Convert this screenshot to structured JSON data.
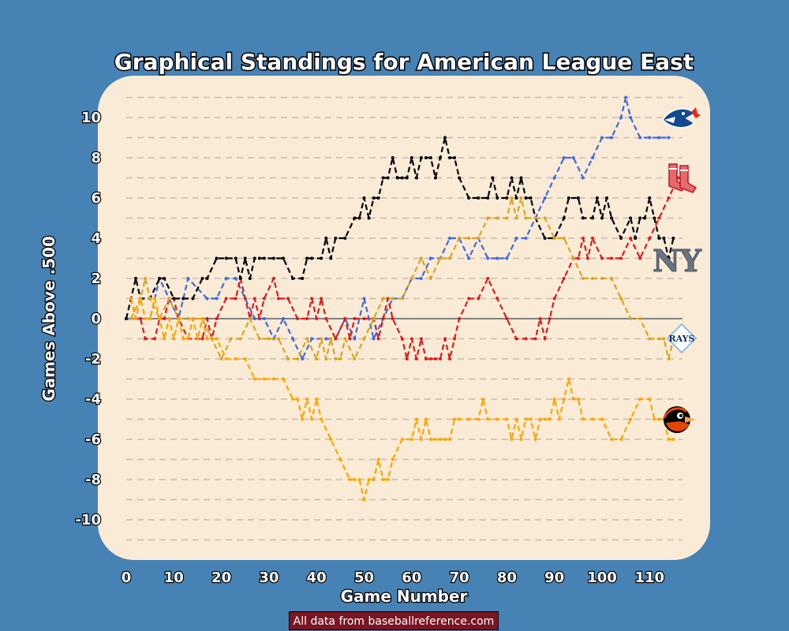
{
  "chart_data": {
    "type": "line",
    "title": "Graphical Standings for American League East",
    "xlabel": "Game Number",
    "ylabel": "Games Above .500",
    "xlim": [
      0,
      117
    ],
    "ylim": [
      -11,
      11
    ],
    "xticks": [
      0,
      10,
      20,
      30,
      40,
      50,
      60,
      70,
      80,
      90,
      100,
      110
    ],
    "yticks": [
      -10,
      -8,
      -6,
      -4,
      -2,
      0,
      2,
      4,
      6,
      8,
      10
    ],
    "grid": "horizontal dashed at every integer",
    "series": [
      {
        "team": "Blue Jays",
        "color": "#4169e1",
        "logo": "blue-jays-logo",
        "x": [
          0,
          5,
          7,
          9,
          11,
          13,
          17,
          19,
          21,
          23,
          27,
          29,
          31,
          33,
          35,
          37,
          39,
          42,
          44,
          46,
          48,
          50,
          52,
          54,
          56,
          58,
          60,
          62,
          64,
          66,
          68,
          70,
          72,
          74,
          76,
          78,
          80,
          82,
          84,
          86,
          88,
          90,
          92,
          94,
          96,
          98,
          100,
          102,
          104,
          105,
          106,
          108,
          110,
          112,
          114
        ],
        "y": [
          0,
          0,
          2,
          1,
          0,
          2,
          1,
          1,
          2,
          2,
          0,
          0,
          -1,
          0,
          -1,
          -2,
          -1,
          -1,
          -1,
          0,
          -1,
          1,
          -1,
          0,
          1,
          1,
          2,
          2,
          3,
          3,
          4,
          4,
          3,
          4,
          3,
          3,
          3,
          4,
          4,
          5,
          6,
          7,
          8,
          8,
          7,
          8,
          9,
          9,
          10,
          11,
          10,
          9,
          9,
          9,
          9
        ]
      },
      {
        "team": "Red Sox",
        "color": "#e31a1c",
        "logo": "red-sox-logo",
        "x": [
          1,
          2,
          3,
          4,
          6,
          7,
          8,
          9,
          10,
          11,
          13,
          15,
          16,
          17,
          18,
          19,
          21,
          23,
          24,
          25,
          26,
          27,
          28,
          29,
          31,
          32,
          34,
          36,
          38,
          39,
          40,
          41,
          42,
          44,
          46,
          47,
          48,
          50,
          52,
          53,
          54,
          55,
          56,
          58,
          59,
          60,
          61,
          62,
          63,
          64,
          65,
          66,
          67,
          68,
          69,
          70,
          72,
          74,
          76,
          78,
          80,
          82,
          84,
          86,
          87,
          88,
          89,
          90,
          92,
          94,
          95,
          96,
          97,
          98,
          100,
          102,
          104,
          106,
          108,
          110,
          112,
          114,
          116
        ],
        "y": [
          1,
          0,
          0,
          -1,
          -1,
          0,
          0,
          1,
          1,
          0,
          -1,
          -1,
          -1,
          0,
          -1,
          0,
          1,
          1,
          2,
          1,
          0,
          1,
          0,
          1,
          2,
          1,
          1,
          0,
          0,
          1,
          0,
          1,
          0,
          -1,
          0,
          -1,
          0,
          0,
          0,
          -1,
          0,
          1,
          0,
          -1,
          -2,
          -1,
          -2,
          -1,
          -2,
          -2,
          -2,
          -2,
          -1,
          -2,
          -1,
          0,
          1,
          1,
          2,
          1,
          0,
          -1,
          -1,
          -1,
          0,
          -1,
          0,
          1,
          2,
          3,
          3,
          4,
          3,
          4,
          3,
          3,
          3,
          4,
          3,
          4,
          5,
          6,
          7
        ]
      },
      {
        "team": "Yankees",
        "color": "#000000",
        "logo": "yankees-logo",
        "x": [
          0,
          2,
          3,
          5,
          7,
          8,
          10,
          12,
          14,
          16,
          17,
          19,
          21,
          23,
          24,
          25,
          26,
          27,
          28,
          29,
          31,
          33,
          35,
          37,
          38,
          39,
          41,
          42,
          43,
          44,
          46,
          48,
          49,
          50,
          51,
          52,
          53,
          54,
          55,
          56,
          57,
          58,
          59,
          60,
          61,
          62,
          63,
          64,
          65,
          66,
          67,
          68,
          69,
          70,
          72,
          74,
          76,
          77,
          78,
          80,
          81,
          82,
          83,
          84,
          85,
          86,
          88,
          90,
          92,
          93,
          95,
          96,
          98,
          99,
          100,
          101,
          102,
          104,
          106,
          107,
          108,
          109,
          110,
          111,
          112,
          113,
          114,
          115
        ],
        "y": [
          0,
          2,
          1,
          1,
          2,
          2,
          1,
          1,
          1,
          2,
          2,
          3,
          3,
          3,
          2,
          3,
          2,
          3,
          3,
          3,
          3,
          3,
          2,
          2,
          3,
          3,
          3,
          4,
          3,
          4,
          4,
          5,
          5,
          6,
          5,
          6,
          6,
          7,
          7,
          8,
          7,
          7,
          7,
          8,
          7,
          8,
          8,
          8,
          7,
          8,
          9,
          8,
          8,
          7,
          6,
          6,
          6,
          7,
          6,
          6,
          7,
          6,
          7,
          6,
          6,
          5,
          4,
          4,
          5,
          6,
          6,
          5,
          5,
          6,
          5,
          6,
          5,
          4,
          5,
          4,
          5,
          5,
          6,
          5,
          4,
          4,
          3,
          4
        ]
      },
      {
        "team": "Rays",
        "color": "#daa520",
        "logo": "rays-logo",
        "x": [
          1,
          3,
          4,
          5,
          7,
          9,
          11,
          13,
          16,
          18,
          20,
          22,
          24,
          26,
          28,
          30,
          32,
          34,
          36,
          38,
          40,
          41,
          42,
          43,
          44,
          45,
          46,
          48,
          50,
          52,
          54,
          56,
          58,
          60,
          62,
          64,
          66,
          68,
          70,
          72,
          74,
          76,
          78,
          80,
          81,
          82,
          83,
          84,
          86,
          88,
          90,
          92,
          94,
          96,
          98,
          100,
          102,
          104,
          106,
          108,
          110,
          112,
          113,
          114,
          115
        ],
        "y": [
          0,
          1,
          2,
          1,
          0,
          1,
          0,
          0,
          0,
          -1,
          -2,
          -1,
          -1,
          0,
          -1,
          -1,
          -1,
          -2,
          -2,
          -1,
          -2,
          -1,
          -2,
          -1,
          -2,
          -2,
          -1,
          -2,
          -1,
          0,
          1,
          1,
          1,
          2,
          3,
          2,
          3,
          3,
          4,
          4,
          4,
          5,
          5,
          5,
          6,
          5,
          6,
          5,
          5,
          5,
          4,
          4,
          3,
          2,
          2,
          2,
          2,
          1,
          0,
          0,
          -1,
          -1,
          -1,
          -2,
          -1
        ]
      },
      {
        "team": "Orioles",
        "color": "#ffa500",
        "logo": "orioles-logo",
        "x": [
          1,
          2,
          3,
          4,
          5,
          6,
          7,
          8,
          9,
          10,
          11,
          12,
          13,
          14,
          15,
          16,
          17,
          19,
          21,
          23,
          25,
          27,
          29,
          31,
          33,
          35,
          36,
          37,
          38,
          39,
          40,
          41,
          43,
          45,
          47,
          48,
          49,
          50,
          51,
          52,
          53,
          54,
          55,
          56,
          58,
          60,
          61,
          62,
          63,
          64,
          65,
          66,
          67,
          68,
          69,
          70,
          72,
          74,
          75,
          76,
          78,
          80,
          81,
          82,
          83,
          84,
          85,
          86,
          87,
          88,
          89,
          90,
          91,
          92,
          93,
          94,
          95,
          96,
          98,
          100,
          102,
          104,
          106,
          108,
          110,
          111,
          112,
          113,
          114,
          115
        ],
        "y": [
          1,
          0,
          1,
          0,
          0,
          1,
          0,
          -1,
          0,
          -1,
          0,
          -1,
          -1,
          0,
          -1,
          0,
          -1,
          -1,
          -2,
          -2,
          -2,
          -3,
          -3,
          -3,
          -3,
          -4,
          -4,
          -5,
          -4,
          -5,
          -4,
          -5,
          -6,
          -7,
          -8,
          -8,
          -8,
          -9,
          -8,
          -8,
          -7,
          -8,
          -8,
          -7,
          -6,
          -6,
          -5,
          -6,
          -5,
          -6,
          -6,
          -6,
          -6,
          -6,
          -5,
          -5,
          -5,
          -5,
          -4,
          -5,
          -5,
          -5,
          -6,
          -5,
          -6,
          -5,
          -5,
          -6,
          -5,
          -5,
          -5,
          -4,
          -5,
          -4,
          -3,
          -4,
          -4,
          -5,
          -5,
          -5,
          -6,
          -6,
          -5,
          -4,
          -4,
          -5,
          -5,
          -5,
          -6,
          -6
        ]
      }
    ]
  },
  "footer": {
    "credit": "All data from baseballreference.com"
  },
  "logos": {
    "rays_text": "RAYS",
    "yankees_text": "NY"
  },
  "colors": {
    "background": "#4682b4",
    "plot_area": "#faebd7",
    "grid": "#c8bcb0",
    "zero_line": "#808080",
    "credit_box": "#7a1622"
  }
}
